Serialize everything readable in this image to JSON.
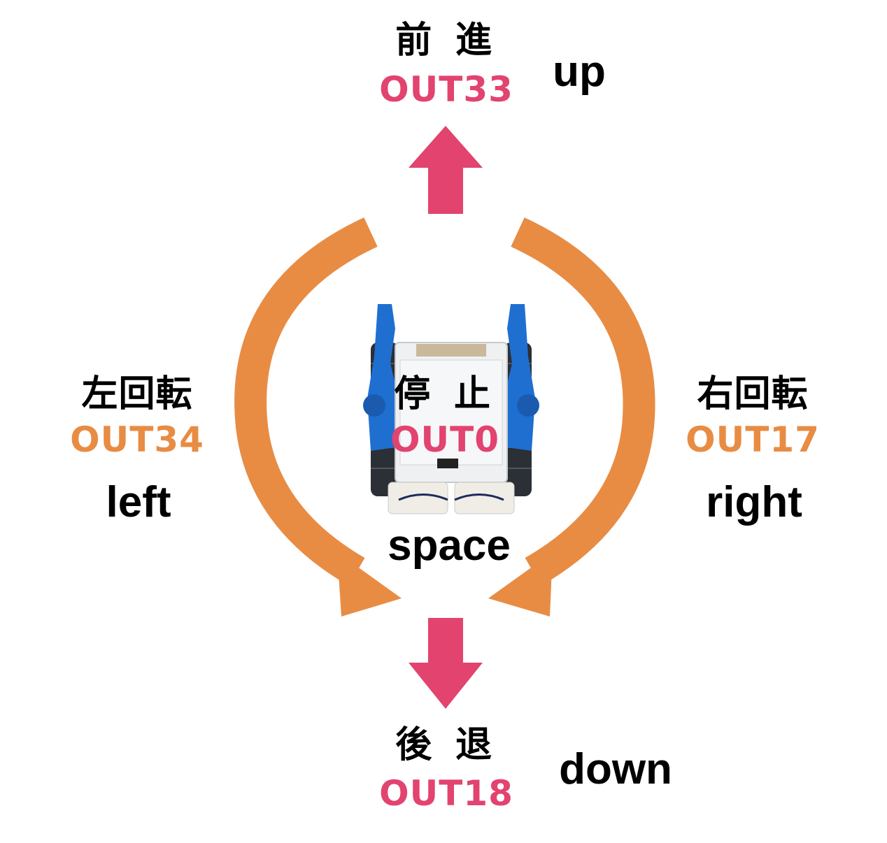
{
  "colors": {
    "forward_back": "#e2436f",
    "turn": "#e88c44",
    "text": "#000000"
  },
  "forward": {
    "jp": "前 進",
    "code": "OUT33",
    "key": "up"
  },
  "stop": {
    "jp": "停 止",
    "code": "OUT0",
    "key": "space"
  },
  "left": {
    "jp": "左回転",
    "code": "OUT34",
    "key": "left"
  },
  "right": {
    "jp": "右回転",
    "code": "OUT17",
    "key": "right"
  },
  "back": {
    "jp": "後 退",
    "code": "OUT18",
    "key": "down"
  },
  "icons": {
    "up_arrow": "arrow-up-icon",
    "down_arrow": "arrow-down-icon",
    "left_turn_arrow": "curved-arrow-left-turn-icon",
    "right_turn_arrow": "curved-arrow-right-turn-icon",
    "robot": "crawler-robot-image"
  }
}
